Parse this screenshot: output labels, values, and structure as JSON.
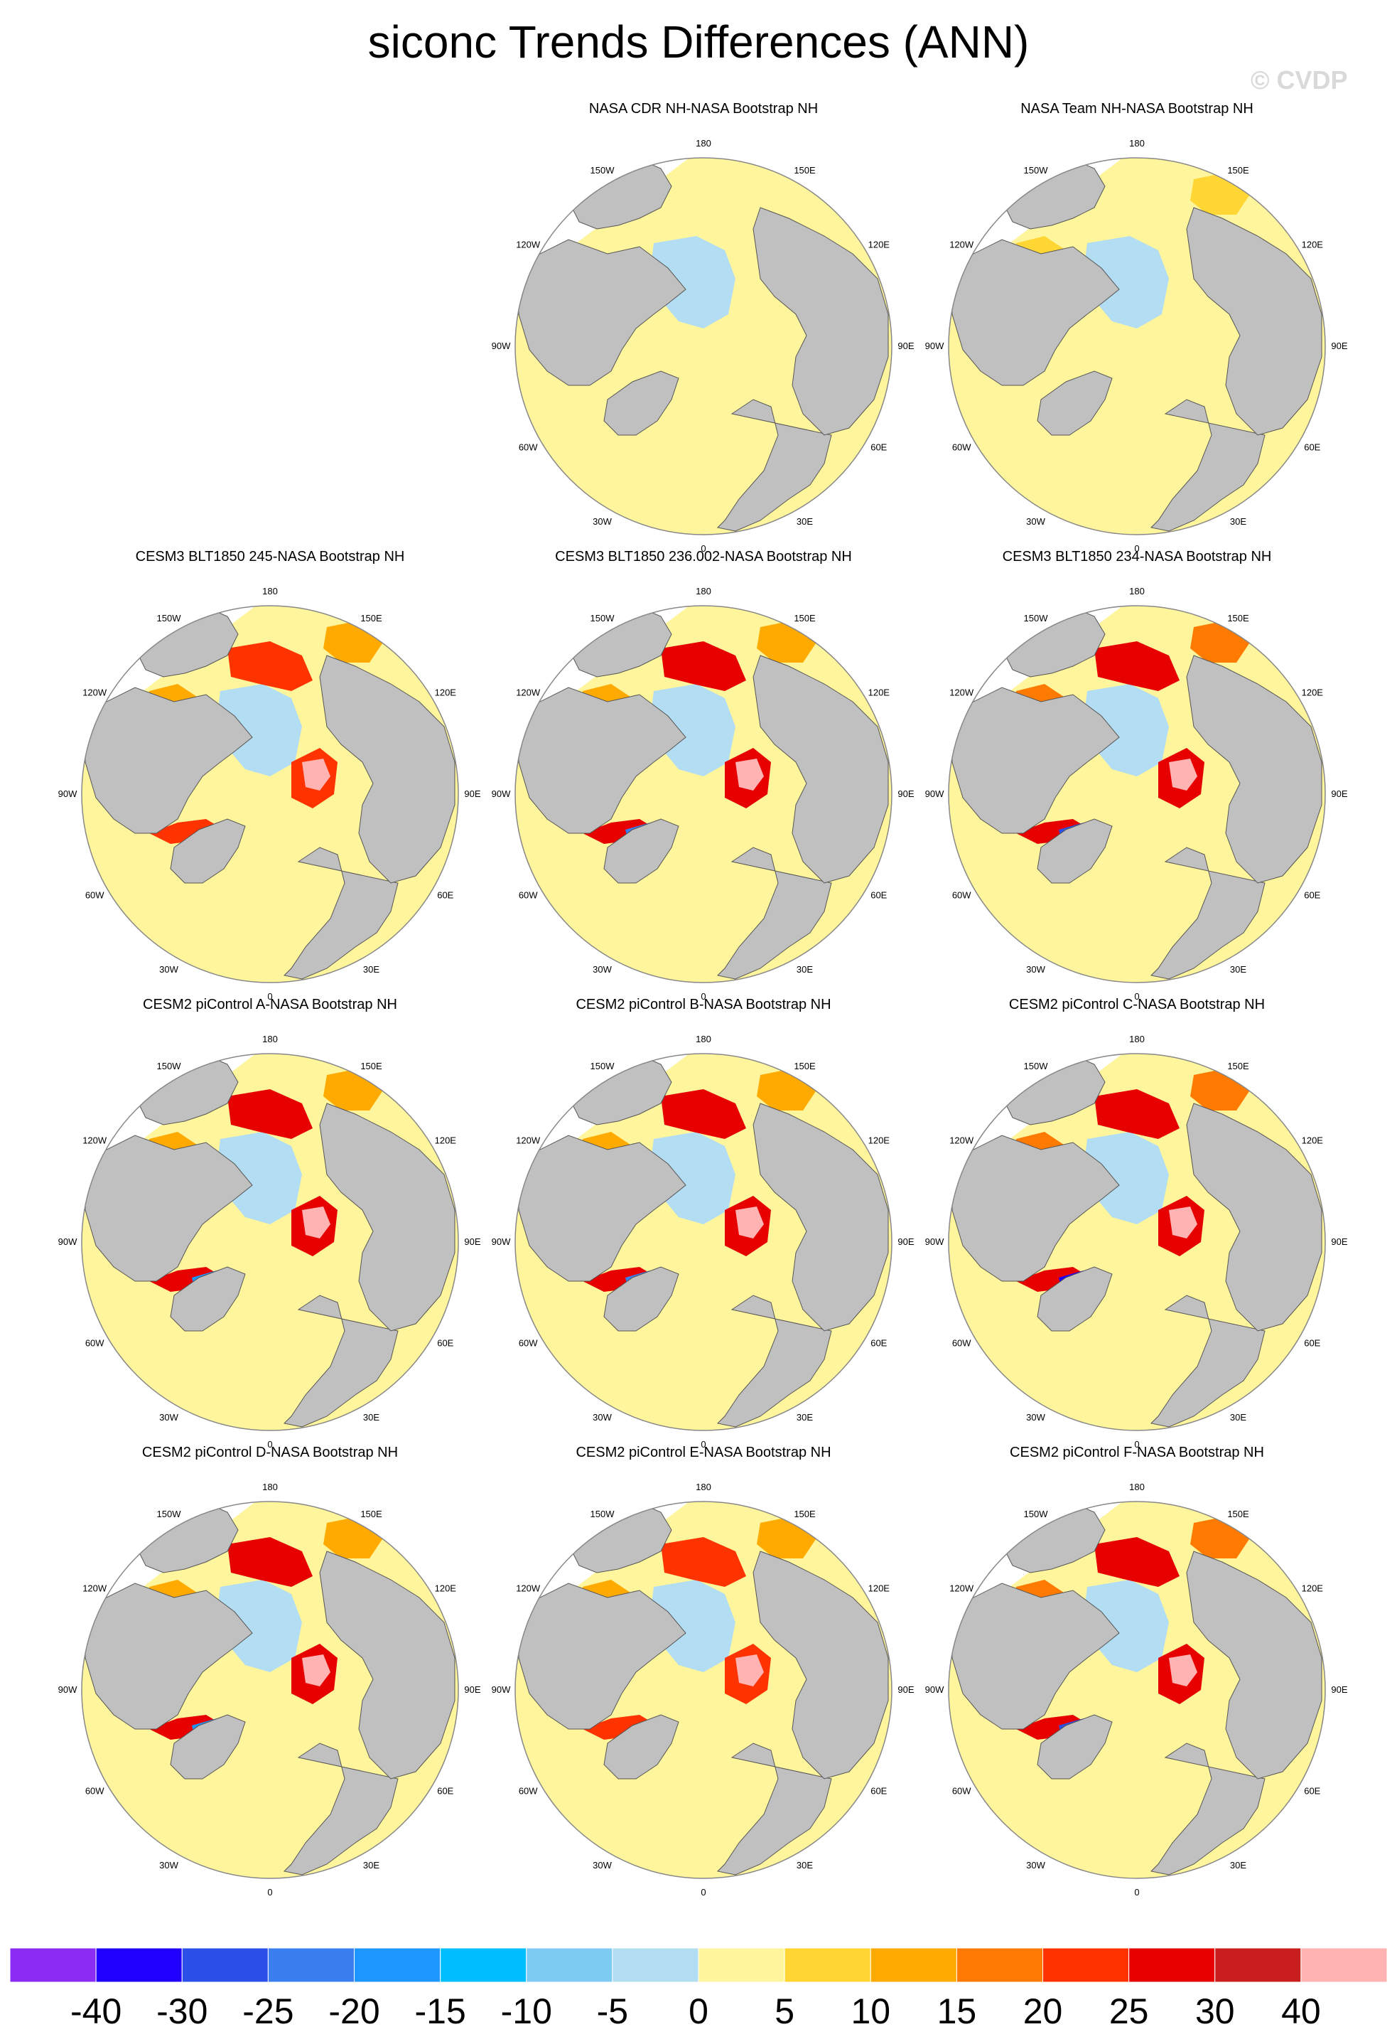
{
  "title": "siconc Trends Differences (ANN)",
  "watermark": "© CVDP",
  "colors": {
    "land": "#c0c0c0",
    "coast": "#555555",
    "frame": "#888888"
  },
  "lon_labels": [
    "180",
    "150E",
    "120E",
    "90E",
    "60E",
    "30E",
    "0",
    "30W",
    "60W",
    "90W",
    "120W",
    "150W"
  ],
  "panels": [
    {
      "title": "NASA CDR NH-NASA Bootstrap NH",
      "row": 0,
      "col": 1,
      "style": "obs_cdr"
    },
    {
      "title": "NASA Team NH-NASA Bootstrap NH",
      "row": 0,
      "col": 2,
      "style": "obs_team"
    },
    {
      "title": "CESM3 BLT1850 245-NASA Bootstrap NH",
      "row": 1,
      "col": 0,
      "style": "model_a"
    },
    {
      "title": "CESM3 BLT1850 236.002-NASA Bootstrap NH",
      "row": 1,
      "col": 1,
      "style": "model_b"
    },
    {
      "title": "CESM3 BLT1850 234-NASA Bootstrap NH",
      "row": 1,
      "col": 2,
      "style": "model_c"
    },
    {
      "title": "CESM2 piControl A-NASA Bootstrap NH",
      "row": 2,
      "col": 0,
      "style": "model_d"
    },
    {
      "title": "CESM2 piControl B-NASA Bootstrap NH",
      "row": 2,
      "col": 1,
      "style": "model_b"
    },
    {
      "title": "CESM2 piControl C-NASA Bootstrap NH",
      "row": 2,
      "col": 2,
      "style": "model_e"
    },
    {
      "title": "CESM2 piControl D-NASA Bootstrap NH",
      "row": 3,
      "col": 0,
      "style": "model_d"
    },
    {
      "title": "CESM2 piControl E-NASA Bootstrap NH",
      "row": 3,
      "col": 1,
      "style": "model_a"
    },
    {
      "title": "CESM2 piControl F-NASA Bootstrap NH",
      "row": 3,
      "col": 2,
      "style": "model_c"
    }
  ],
  "colorbar": {
    "colors": [
      "#8b2cf5",
      "#1f00ff",
      "#2b4fe8",
      "#3a7ef0",
      "#1e96ff",
      "#00bfff",
      "#7ecbf3",
      "#b3ddf2",
      "#fff59c",
      "#ffd633",
      "#ffaa00",
      "#ff7a00",
      "#ff3300",
      "#e60000",
      "#c81e1e",
      "#ffb3b3"
    ],
    "labels": [
      "-40",
      "-30",
      "-25",
      "-20",
      "-15",
      "-10",
      "-5",
      "0",
      "5",
      "10",
      "15",
      "20",
      "25",
      "30",
      "40"
    ]
  }
}
